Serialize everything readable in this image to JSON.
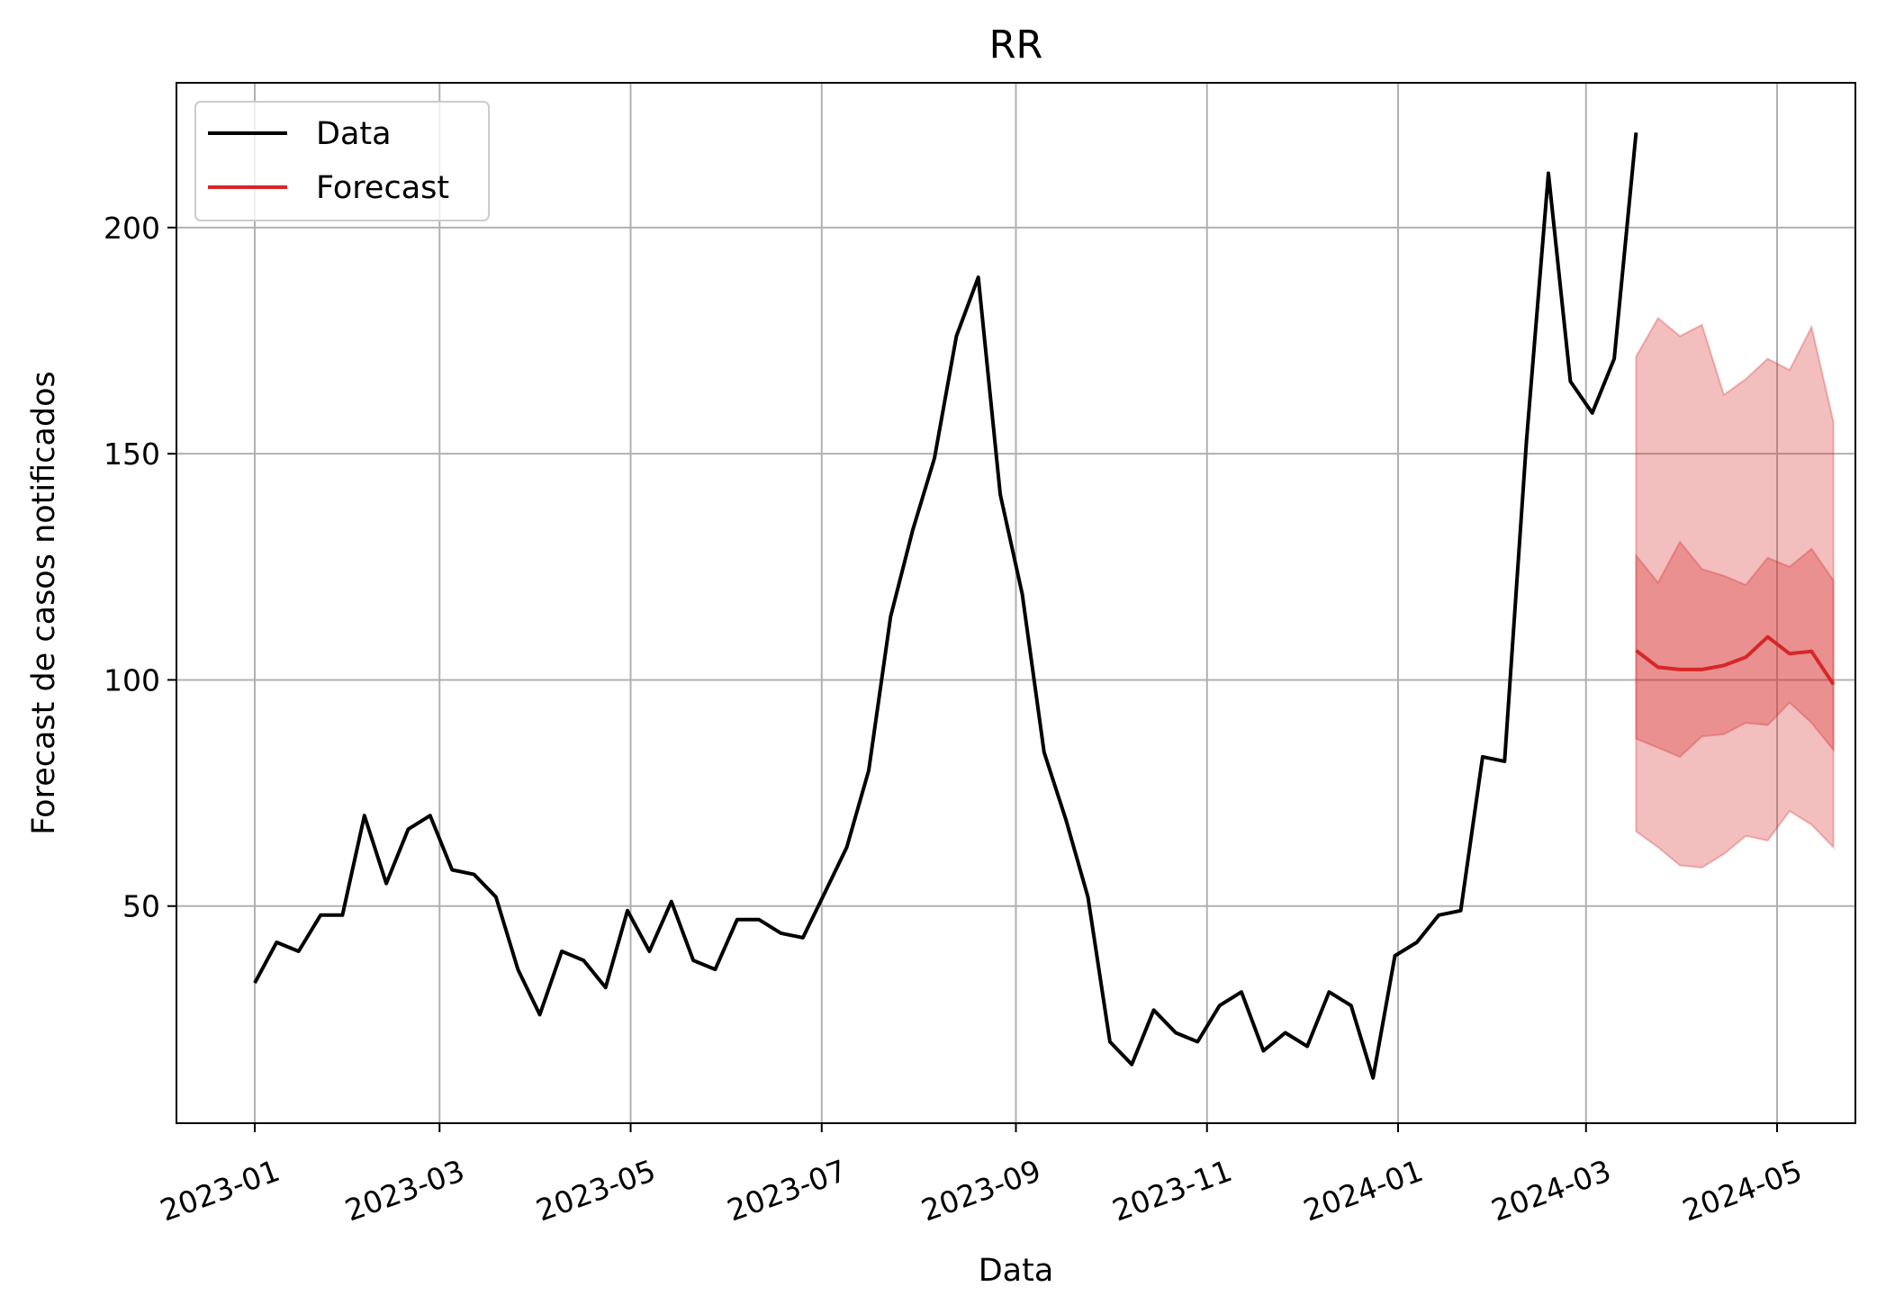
{
  "chart_data": {
    "type": "line",
    "title": "RR",
    "xlabel": "Data",
    "ylabel": "Forecast de casos notificados",
    "x_tick_labels": [
      "2023-01",
      "2023-03",
      "2023-05",
      "2023-07",
      "2023-09",
      "2023-11",
      "2024-01",
      "2024-03",
      "2024-05"
    ],
    "x_ticks": [
      "2023-01-01",
      "2023-03-01",
      "2023-05-01",
      "2023-07-01",
      "2023-09-01",
      "2023-11-01",
      "2024-01-01",
      "2024-03-01",
      "2024-05-01"
    ],
    "y_ticks": [
      50,
      100,
      150,
      200
    ],
    "y_tick_labels": [
      "50",
      "100",
      "150",
      "200"
    ],
    "xlim": [
      "2022-12-07",
      "2024-05-26"
    ],
    "ylim": [
      2,
      232
    ],
    "grid": true,
    "legend_position": "upper-left",
    "series": [
      {
        "name": "Data",
        "color": "#000000",
        "x": [
          "2023-01-01",
          "2023-01-08",
          "2023-01-15",
          "2023-01-22",
          "2023-01-29",
          "2023-02-05",
          "2023-02-12",
          "2023-02-19",
          "2023-02-26",
          "2023-03-05",
          "2023-03-12",
          "2023-03-19",
          "2023-03-26",
          "2023-04-02",
          "2023-04-09",
          "2023-04-16",
          "2023-04-23",
          "2023-04-30",
          "2023-05-07",
          "2023-05-14",
          "2023-05-21",
          "2023-05-28",
          "2023-06-04",
          "2023-06-11",
          "2023-06-18",
          "2023-06-25",
          "2023-07-02",
          "2023-07-09",
          "2023-07-16",
          "2023-07-23",
          "2023-07-30",
          "2023-08-06",
          "2023-08-13",
          "2023-08-20",
          "2023-08-27",
          "2023-09-03",
          "2023-09-10",
          "2023-09-17",
          "2023-09-24",
          "2023-10-01",
          "2023-10-08",
          "2023-10-15",
          "2023-10-22",
          "2023-10-29",
          "2023-11-05",
          "2023-11-12",
          "2023-11-19",
          "2023-11-26",
          "2023-12-03",
          "2023-12-10",
          "2023-12-17",
          "2023-12-24",
          "2023-12-31",
          "2024-01-07",
          "2024-01-14",
          "2024-01-21",
          "2024-01-28",
          "2024-02-04",
          "2024-02-11",
          "2024-02-18",
          "2024-02-25",
          "2024-03-03",
          "2024-03-10",
          "2024-03-17"
        ],
        "values": [
          33,
          42,
          40,
          48,
          48,
          70,
          55,
          67,
          70,
          58,
          57,
          52,
          36,
          26,
          40,
          38,
          32,
          49,
          40,
          51,
          38,
          36,
          47,
          47,
          44,
          43,
          53,
          63,
          80,
          114,
          133,
          149,
          176,
          189,
          141,
          119,
          84,
          69,
          52,
          20,
          15,
          27,
          22,
          20,
          28,
          31,
          18,
          22,
          19,
          31,
          28,
          12,
          39,
          42,
          48,
          49,
          83,
          82,
          153,
          212,
          166,
          159,
          171,
          221
        ]
      },
      {
        "name": "Forecast",
        "color": "#d62728",
        "x": [
          "2024-03-17",
          "2024-03-24",
          "2024-03-31",
          "2024-04-07",
          "2024-04-14",
          "2024-04-21",
          "2024-04-28",
          "2024-05-05",
          "2024-05-12",
          "2024-05-19"
        ],
        "values": [
          106.5,
          102.8,
          102.3,
          102.3,
          103.2,
          105.0,
          109.5,
          105.8,
          106.3,
          99.0
        ],
        "interval_50": {
          "lower": [
            87.0,
            85.0,
            83.0,
            87.5,
            88.0,
            90.5,
            90.0,
            95.0,
            90.5,
            84.5
          ],
          "upper": [
            127.5,
            121.5,
            130.5,
            124.5,
            123.0,
            121.0,
            127.0,
            125.0,
            129.0,
            122.0
          ]
        },
        "interval_95": {
          "lower": [
            66.5,
            63.0,
            59.0,
            58.5,
            61.5,
            65.5,
            64.5,
            71.0,
            68.0,
            63.0
          ],
          "upper": [
            171.5,
            180.0,
            176.0,
            178.5,
            163.0,
            166.5,
            171.0,
            168.5,
            178.0,
            157.0
          ]
        }
      }
    ]
  }
}
